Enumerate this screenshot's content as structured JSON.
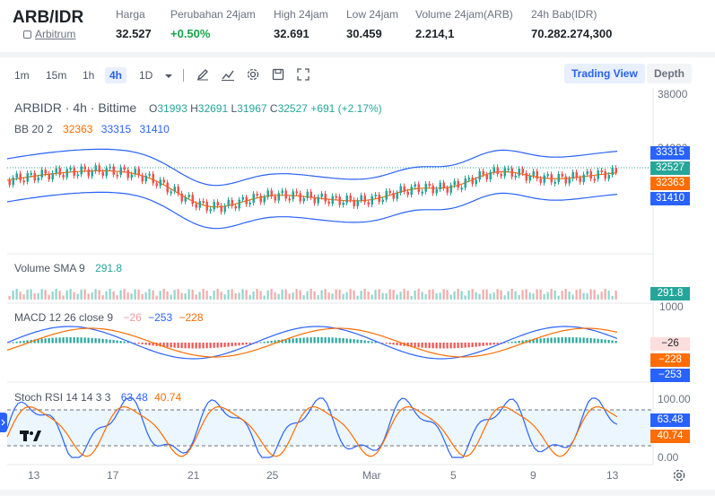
{
  "header": {
    "pair": "ARB/IDR",
    "coin": "Arbitrum",
    "stats": [
      {
        "label": "Harga",
        "value": "32.527",
        "up": false
      },
      {
        "label": "Perubahan 24jam",
        "value": "+0.50%",
        "up": true
      },
      {
        "label": "High 24jam",
        "value": "32.691",
        "up": false
      },
      {
        "label": "Low 24jam",
        "value": "30.459",
        "up": false
      },
      {
        "label": "Volume 24jam(ARB)",
        "value": "2.214,1",
        "up": false
      },
      {
        "label": "24h Bab(IDR)",
        "value": "70.282.274,300",
        "up": false
      }
    ]
  },
  "toolbar": {
    "intervals": [
      "1m",
      "15m",
      "1h",
      "4h",
      "1D"
    ],
    "active_interval": "4h",
    "trading_view": "Trading View",
    "depth": "Depth"
  },
  "chart": {
    "symbol_line": "ARBIDR · 4h · Bittime",
    "ohlc": {
      "o_label": "O",
      "o": "31993",
      "h_label": "H",
      "h": "32691",
      "l_label": "L",
      "l": "31967",
      "c_label": "C",
      "c": "32527",
      "change": "+691 (+2.17%)"
    },
    "bb": {
      "label": "BB 20 2",
      "v1": "32363",
      "v2": "33315",
      "v3": "31410"
    },
    "volume": {
      "label": "Volume SMA 9",
      "value": "291.8"
    },
    "macd": {
      "label": "MACD 12 26 close 9",
      "v1": "−26",
      "v2": "−253",
      "v3": "−228"
    },
    "stoch": {
      "label": "Stoch RSI 14 14 3 3",
      "v1": "63.48",
      "v2": "40.74"
    },
    "price_axis": {
      "top": "38000",
      "upper": "34000"
    },
    "badges": {
      "bb_upper": "33315",
      "price": "32527",
      "bb_mid": "32363",
      "bb_lower": "31410",
      "volume": "291.8",
      "macd_hist": "−26",
      "macd_signal": "−228",
      "macd_line": "−253",
      "stoch_k": "63.48",
      "stoch_d": "40.74"
    },
    "macd_axis": {
      "top": "1000"
    },
    "stoch_axis": {
      "top": "100.00",
      "bottom": "0.00"
    },
    "time_labels": [
      "13",
      "17",
      "21",
      "25",
      "Mar",
      "5",
      "9",
      "13"
    ],
    "colors": {
      "up": "#26a69a",
      "down": "#ef5350",
      "bb_band": "#2962ff",
      "bb_mid": "#ff6d00",
      "accent": "#2563eb"
    }
  }
}
